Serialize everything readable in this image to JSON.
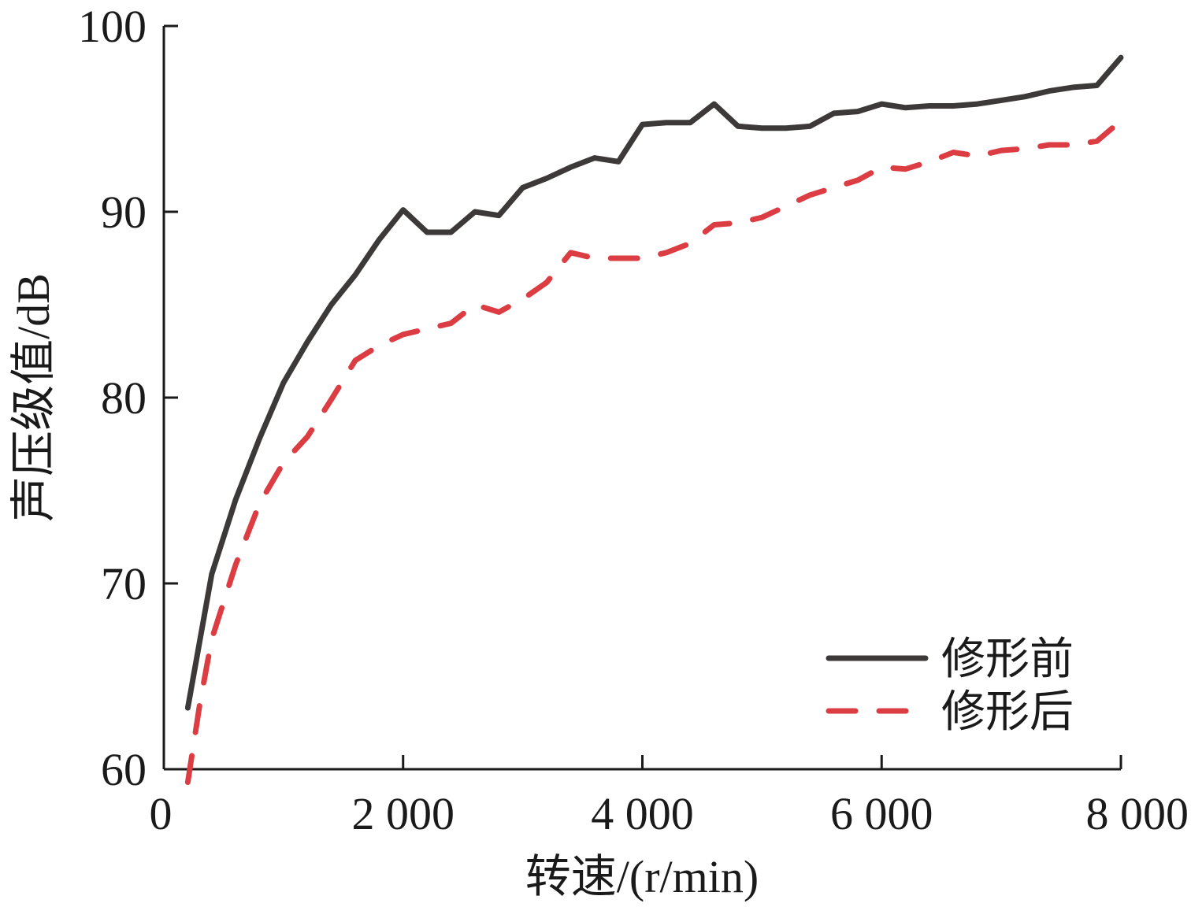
{
  "chart_data": {
    "type": "line",
    "xlabel": "转速/(r/min)",
    "ylabel": "声压级值/dB",
    "xlim": [
      0,
      8000
    ],
    "ylim": [
      60,
      100
    ],
    "x_ticks": [
      {
        "value": 0,
        "label": "0"
      },
      {
        "value": 2000,
        "label": "2 000"
      },
      {
        "value": 4000,
        "label": "4 000"
      },
      {
        "value": 6000,
        "label": "6 000"
      },
      {
        "value": 8000,
        "label": "8 000"
      }
    ],
    "y_ticks": [
      {
        "value": 60,
        "label": "60"
      },
      {
        "value": 70,
        "label": "70"
      },
      {
        "value": 80,
        "label": "80"
      },
      {
        "value": 90,
        "label": "90"
      },
      {
        "value": 100,
        "label": "100"
      }
    ],
    "grid": false,
    "legend_position": "bottom-right",
    "series": [
      {
        "name": "修形前",
        "color": "#3d3939",
        "dash": "solid",
        "points": [
          [
            200,
            63.3
          ],
          [
            400,
            70.5
          ],
          [
            600,
            74.5
          ],
          [
            800,
            77.8
          ],
          [
            1000,
            80.8
          ],
          [
            1200,
            83.0
          ],
          [
            1400,
            85.0
          ],
          [
            1600,
            86.6
          ],
          [
            1800,
            88.5
          ],
          [
            2000,
            90.1
          ],
          [
            2200,
            88.9
          ],
          [
            2400,
            88.9
          ],
          [
            2600,
            90.0
          ],
          [
            2800,
            89.8
          ],
          [
            3000,
            91.3
          ],
          [
            3200,
            91.8
          ],
          [
            3400,
            92.4
          ],
          [
            3600,
            92.9
          ],
          [
            3800,
            92.7
          ],
          [
            4000,
            94.7
          ],
          [
            4200,
            94.8
          ],
          [
            4400,
            94.8
          ],
          [
            4600,
            95.8
          ],
          [
            4800,
            94.6
          ],
          [
            5000,
            94.5
          ],
          [
            5200,
            94.5
          ],
          [
            5400,
            94.6
          ],
          [
            5600,
            95.3
          ],
          [
            5800,
            95.4
          ],
          [
            6000,
            95.8
          ],
          [
            6200,
            95.6
          ],
          [
            6400,
            95.7
          ],
          [
            6600,
            95.7
          ],
          [
            6800,
            95.8
          ],
          [
            7000,
            96.0
          ],
          [
            7200,
            96.2
          ],
          [
            7400,
            96.5
          ],
          [
            7600,
            96.7
          ],
          [
            7800,
            96.8
          ],
          [
            8000,
            98.3
          ]
        ]
      },
      {
        "name": "修形后",
        "color": "#dc3d43",
        "dash": "dashed",
        "points": [
          [
            200,
            59.3
          ],
          [
            300,
            63.5
          ],
          [
            400,
            67.0
          ],
          [
            600,
            71.0
          ],
          [
            800,
            74.3
          ],
          [
            1000,
            76.5
          ],
          [
            1200,
            77.9
          ],
          [
            1400,
            79.9
          ],
          [
            1600,
            82.0
          ],
          [
            1800,
            82.8
          ],
          [
            2000,
            83.4
          ],
          [
            2200,
            83.7
          ],
          [
            2400,
            84.0
          ],
          [
            2600,
            85.0
          ],
          [
            2800,
            84.6
          ],
          [
            3000,
            85.3
          ],
          [
            3200,
            86.2
          ],
          [
            3400,
            87.8
          ],
          [
            3600,
            87.5
          ],
          [
            3800,
            87.5
          ],
          [
            4000,
            87.5
          ],
          [
            4200,
            87.8
          ],
          [
            4400,
            88.3
          ],
          [
            4600,
            89.3
          ],
          [
            4800,
            89.4
          ],
          [
            5000,
            89.7
          ],
          [
            5200,
            90.3
          ],
          [
            5400,
            90.9
          ],
          [
            5600,
            91.3
          ],
          [
            5800,
            91.7
          ],
          [
            6000,
            92.4
          ],
          [
            6200,
            92.3
          ],
          [
            6400,
            92.7
          ],
          [
            6600,
            93.2
          ],
          [
            6800,
            93.0
          ],
          [
            7000,
            93.3
          ],
          [
            7200,
            93.4
          ],
          [
            7400,
            93.6
          ],
          [
            7600,
            93.6
          ],
          [
            7800,
            93.8
          ],
          [
            8000,
            94.9
          ]
        ]
      }
    ]
  }
}
